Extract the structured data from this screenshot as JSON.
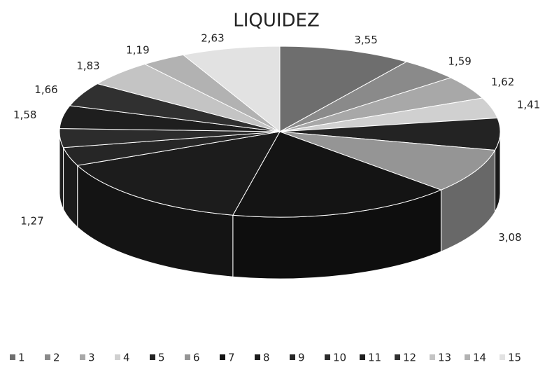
{
  "chart_data": {
    "type": "pie3d",
    "title": "LIQUIDEZ",
    "categories": [
      "1",
      "2",
      "3",
      "4",
      "5",
      "6",
      "7",
      "8",
      "9",
      "10",
      "11",
      "12",
      "13",
      "14",
      "15"
    ],
    "values": [
      3.55,
      1.59,
      1.62,
      1.41,
      2.2,
      3.08,
      6.0,
      5.5,
      1.27,
      1.3,
      1.58,
      1.66,
      1.83,
      1.19,
      2.63
    ],
    "value_labels": [
      "3,55",
      "1,59",
      "1,62",
      "1,41",
      null,
      "3,08",
      null,
      null,
      "1,27",
      null,
      "1,58",
      "1,66",
      "1,83",
      "1,19",
      "2,63"
    ],
    "colors": [
      "#6e6e6e",
      "#8a8a8a",
      "#a8a8a8",
      "#d0d0d0",
      "#232323",
      "#959595",
      "#141414",
      "#1c1c1c",
      "#262626",
      "#2c2c2c",
      "#1e1e1e",
      "#303030",
      "#c4c4c4",
      "#b2b2b2",
      "#e2e2e2"
    ],
    "legend": "bottom"
  }
}
